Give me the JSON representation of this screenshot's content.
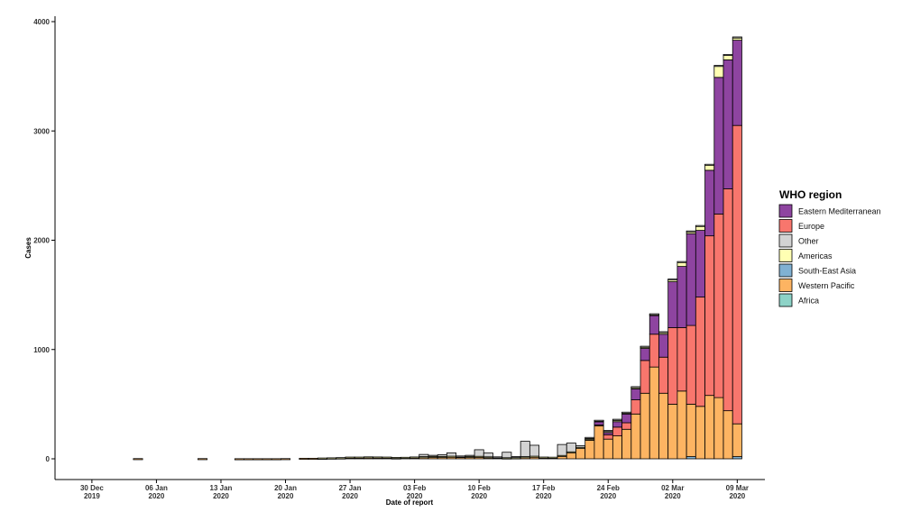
{
  "chart_data": {
    "type": "bar",
    "stacked": true,
    "xlabel": "Date of report",
    "ylabel": "Cases",
    "ylim": [
      0,
      4000
    ],
    "yticks": [
      0,
      1000,
      2000,
      3000,
      4000
    ],
    "x_date_range": [
      "2019-12-26",
      "2020-03-12"
    ],
    "xticks": [
      {
        "date": "2019-12-30",
        "line1": "30 Dec",
        "line2": "2019"
      },
      {
        "date": "2020-01-06",
        "line1": "06 Jan",
        "line2": "2020"
      },
      {
        "date": "2020-01-13",
        "line1": "13 Jan",
        "line2": "2020"
      },
      {
        "date": "2020-01-20",
        "line1": "20 Jan",
        "line2": "2020"
      },
      {
        "date": "2020-01-27",
        "line1": "27 Jan",
        "line2": "2020"
      },
      {
        "date": "2020-02-03",
        "line1": "03 Feb",
        "line2": "2020"
      },
      {
        "date": "2020-02-10",
        "line1": "10 Feb",
        "line2": "2020"
      },
      {
        "date": "2020-02-17",
        "line1": "17 Feb",
        "line2": "2020"
      },
      {
        "date": "2020-02-24",
        "line1": "24 Feb",
        "line2": "2020"
      },
      {
        "date": "2020-03-02",
        "line1": "02 Mar",
        "line2": "2020"
      },
      {
        "date": "2020-03-09",
        "line1": "09 Mar",
        "line2": "2020"
      }
    ],
    "legend": {
      "title": "WHO region",
      "position": "right"
    },
    "series": [
      {
        "name": "Eastern Mediterranean",
        "color": "#8E44A0"
      },
      {
        "name": "Europe",
        "color": "#F8766D"
      },
      {
        "name": "Other",
        "color": "#D3D3D3"
      },
      {
        "name": "Americas",
        "color": "#FFFFB3"
      },
      {
        "name": "South-East Asia",
        "color": "#80B1D3"
      },
      {
        "name": "Western Pacific",
        "color": "#FDB462"
      },
      {
        "name": "Africa",
        "color": "#8DD3C7"
      }
    ],
    "stack_order": [
      "Africa",
      "South-East Asia",
      "Western Pacific",
      "Europe",
      "Eastern Mediterranean",
      "Americas",
      "Other"
    ],
    "dates": [
      "2020-01-04",
      "2020-01-11",
      "2020-01-15",
      "2020-01-16",
      "2020-01-17",
      "2020-01-18",
      "2020-01-19",
      "2020-01-20",
      "2020-01-22",
      "2020-01-23",
      "2020-01-24",
      "2020-01-25",
      "2020-01-26",
      "2020-01-27",
      "2020-01-28",
      "2020-01-29",
      "2020-01-30",
      "2020-01-31",
      "2020-02-01",
      "2020-02-02",
      "2020-02-03",
      "2020-02-04",
      "2020-02-05",
      "2020-02-06",
      "2020-02-07",
      "2020-02-08",
      "2020-02-09",
      "2020-02-10",
      "2020-02-11",
      "2020-02-12",
      "2020-02-13",
      "2020-02-14",
      "2020-02-15",
      "2020-02-16",
      "2020-02-17",
      "2020-02-18",
      "2020-02-19",
      "2020-02-20",
      "2020-02-21",
      "2020-02-22",
      "2020-02-23",
      "2020-02-24",
      "2020-02-25",
      "2020-02-26",
      "2020-02-27",
      "2020-02-28",
      "2020-02-29",
      "2020-03-01",
      "2020-03-02",
      "2020-03-03",
      "2020-03-04",
      "2020-03-05",
      "2020-03-06",
      "2020-03-07",
      "2020-03-08",
      "2020-03-09"
    ],
    "values": {
      "Africa": [
        0,
        0,
        0,
        0,
        0,
        0,
        0,
        0,
        0,
        0,
        0,
        0,
        0,
        0,
        0,
        0,
        0,
        0,
        0,
        0,
        0,
        0,
        0,
        0,
        0,
        0,
        0,
        0,
        0,
        0,
        0,
        0,
        0,
        0,
        0,
        0,
        0,
        0,
        0,
        0,
        0,
        0,
        0,
        0,
        0,
        0,
        0,
        0,
        0,
        0,
        0,
        0,
        0,
        0,
        0,
        0
      ],
      "South-East Asia": [
        0,
        0,
        0,
        0,
        0,
        0,
        0,
        0,
        0,
        0,
        0,
        0,
        0,
        0,
        0,
        0,
        0,
        0,
        0,
        0,
        0,
        0,
        0,
        0,
        0,
        0,
        0,
        0,
        0,
        0,
        0,
        0,
        0,
        0,
        0,
        0,
        0,
        0,
        0,
        0,
        0,
        0,
        0,
        0,
        0,
        0,
        0,
        0,
        0,
        0,
        20,
        0,
        0,
        0,
        0,
        20
      ],
      "Western Pacific": [
        2,
        2,
        1,
        1,
        1,
        1,
        1,
        2,
        5,
        5,
        6,
        7,
        8,
        12,
        12,
        13,
        12,
        10,
        8,
        10,
        12,
        14,
        16,
        17,
        20,
        18,
        19,
        20,
        15,
        10,
        8,
        9,
        18,
        22,
        14,
        12,
        28,
        60,
        100,
        170,
        300,
        180,
        210,
        270,
        410,
        600,
        840,
        600,
        500,
        620,
        480,
        480,
        580,
        560,
        440,
        300
      ],
      "Europe": [
        0,
        0,
        0,
        0,
        0,
        0,
        0,
        0,
        0,
        0,
        0,
        0,
        0,
        0,
        0,
        0,
        0,
        0,
        0,
        0,
        0,
        0,
        0,
        0,
        0,
        0,
        0,
        0,
        0,
        0,
        0,
        0,
        0,
        0,
        0,
        0,
        0,
        0,
        0,
        0,
        10,
        40,
        80,
        60,
        130,
        300,
        300,
        330,
        700,
        580,
        720,
        1000,
        1460,
        1680,
        2030,
        2730
      ],
      "Eastern Mediterranean": [
        0,
        0,
        0,
        0,
        0,
        0,
        0,
        0,
        0,
        0,
        0,
        0,
        0,
        0,
        0,
        0,
        0,
        0,
        0,
        0,
        0,
        0,
        0,
        0,
        0,
        0,
        0,
        0,
        0,
        0,
        0,
        0,
        0,
        0,
        0,
        0,
        0,
        0,
        0,
        10,
        30,
        20,
        50,
        80,
        100,
        110,
        170,
        210,
        420,
        560,
        840,
        610,
        600,
        1250,
        1180,
        780
      ],
      "Americas": [
        0,
        0,
        0,
        0,
        0,
        0,
        0,
        0,
        0,
        0,
        1,
        2,
        3,
        4,
        4,
        5,
        5,
        6,
        5,
        4,
        5,
        6,
        6,
        5,
        4,
        3,
        3,
        3,
        3,
        3,
        2,
        2,
        2,
        2,
        2,
        3,
        3,
        4,
        5,
        6,
        8,
        10,
        12,
        12,
        15,
        15,
        12,
        18,
        20,
        40,
        20,
        40,
        50,
        100,
        40,
        20
      ],
      "Other": [
        0,
        0,
        0,
        0,
        0,
        0,
        0,
        0,
        0,
        0,
        0,
        0,
        0,
        0,
        0,
        0,
        0,
        0,
        0,
        0,
        0,
        20,
        10,
        15,
        30,
        5,
        10,
        60,
        35,
        5,
        50,
        10,
        140,
        100,
        0,
        0,
        100,
        80,
        15,
        10,
        5,
        10,
        10,
        5,
        5,
        5,
        5,
        5,
        5,
        5,
        5,
        5,
        5,
        10,
        10,
        10
      ]
    }
  }
}
